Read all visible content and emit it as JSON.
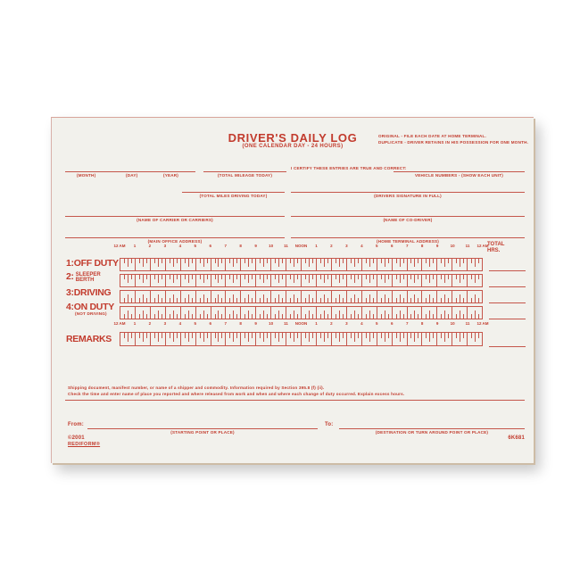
{
  "form": {
    "title": "DRIVER'S DAILY LOG",
    "subtitle": "(ONE CALENDAR DAY - 24 HOURS)",
    "instructions_line1": "ORIGINAL - FILE EACH DATE AT HOME TERMINAL.",
    "instructions_line2": "DUPLICATE - DRIVER RETAINS IN HIS POSSESSION FOR ONE MONTH.",
    "certify_text": "I CERTIFY THESE ENTRIES ARE TRUE AND CORRECT:",
    "fields": {
      "month": "(MONTH)",
      "day": "(DAY)",
      "year": "(YEAR)",
      "total_mileage": "(TOTAL MILEAGE TODAY)",
      "vehicle_numbers": "VEHICLE NUMBERS - (SHOW EACH UNIT)",
      "total_miles_driving": "(TOTAL MILES DRIVING TODAY)",
      "drivers_signature": "(DRIVERS SIGNATURE IN FULL)",
      "carrier": "(NAME OF CARRIER OR CARRIERS)",
      "co_driver": "(NAME OF CO-DRIVER)",
      "main_office": "(MAIN OFFICE ADDRESS)",
      "home_terminal": "(HOME TERMINAL ADDRESS)"
    },
    "grid": {
      "hour_labels": [
        "12 AM",
        "1",
        "2",
        "3",
        "4",
        "5",
        "6",
        "7",
        "8",
        "9",
        "10",
        "11",
        "NOON",
        "1",
        "2",
        "3",
        "4",
        "5",
        "6",
        "7",
        "8",
        "9",
        "10",
        "11",
        "12 AM"
      ],
      "total_header_line1": "TOTAL",
      "total_header_line2": "HRS.",
      "rows": [
        {
          "number": "1:",
          "label": "OFF DUTY",
          "sub": "",
          "ticks": "top"
        },
        {
          "number": "2:",
          "label": "SLEEPER",
          "sub": "BERTH",
          "ticks": "top"
        },
        {
          "number": "3:",
          "label": "DRIVING",
          "sub": "",
          "ticks": "bottom"
        },
        {
          "number": "4:",
          "label": "ON DUTY",
          "sub": "(NOT DRIVING)",
          "ticks": "bottom"
        }
      ],
      "remarks_label": "REMARKS"
    },
    "footer": {
      "shipping_line1": "Shipping document, manifest number, or name of a shipper and commodity. Information required by Section 395.8 (f) (ii).",
      "shipping_line2": "Check the time and enter name of place you reported and where released from work and when and where each change of duty occurred.  Explain excess hours.",
      "from_label": "From:",
      "to_label": "To:",
      "from_caption": "(STARTING POINT OR PLACE)",
      "to_caption": "(DESTINATION OR TURN AROUND POINT OR PLACE)",
      "copyright": "©2001",
      "brand": "REDIFORM®",
      "form_number": "6K681"
    },
    "colors": {
      "ink": "#c23b2d",
      "line": "#c5564b",
      "paper": "#f2f1ec"
    }
  }
}
